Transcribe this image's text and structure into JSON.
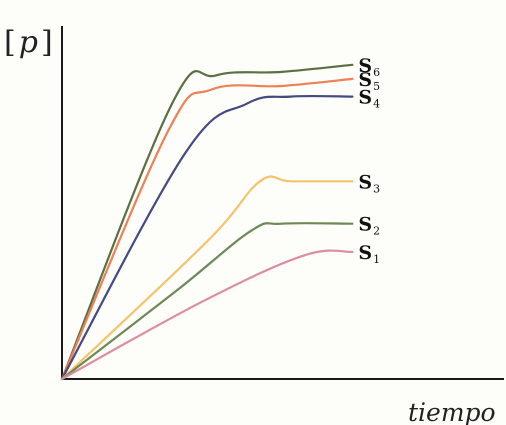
{
  "chart_data": {
    "type": "line",
    "ylabel": {
      "open": "[",
      "var": "p",
      "close": "]"
    },
    "xlabel": "tiempo",
    "xlim": [
      0,
      10
    ],
    "ylim": [
      0,
      10
    ],
    "grid": false,
    "series": [
      {
        "label": "S",
        "sub": "6",
        "color": "#5a7040",
        "points": [
          [
            0,
            0
          ],
          [
            2.5,
            7.8
          ],
          [
            3.5,
            8.6
          ],
          [
            5.0,
            8.7
          ],
          [
            6.6,
            8.9
          ]
        ]
      },
      {
        "label": "S",
        "sub": "5",
        "color": "#f07f55",
        "points": [
          [
            0,
            0
          ],
          [
            2.4,
            7.0
          ],
          [
            3.4,
            8.2
          ],
          [
            5.0,
            8.3
          ],
          [
            6.6,
            8.5
          ]
        ]
      },
      {
        "label": "S",
        "sub": "4",
        "color": "#444a82",
        "points": [
          [
            0,
            0
          ],
          [
            2.8,
            6.4
          ],
          [
            4.2,
            7.8
          ],
          [
            5.2,
            8.0
          ],
          [
            6.6,
            8.0
          ]
        ]
      },
      {
        "label": "S",
        "sub": "3",
        "color": "#f5c46a",
        "points": [
          [
            0,
            0
          ],
          [
            3.3,
            3.9
          ],
          [
            4.5,
            5.6
          ],
          [
            5.2,
            5.6
          ],
          [
            6.6,
            5.6
          ]
        ]
      },
      {
        "label": "S",
        "sub": "2",
        "color": "#6c8a55",
        "points": [
          [
            0,
            0
          ],
          [
            2.6,
            2.5
          ],
          [
            4.3,
            4.2
          ],
          [
            5.0,
            4.4
          ],
          [
            6.6,
            4.4
          ]
        ]
      },
      {
        "label": "S",
        "sub": "1",
        "color": "#de8da0",
        "points": [
          [
            0,
            0
          ],
          [
            3.2,
            2.2
          ],
          [
            5.5,
            3.5
          ],
          [
            6.6,
            3.6
          ]
        ]
      }
    ]
  }
}
